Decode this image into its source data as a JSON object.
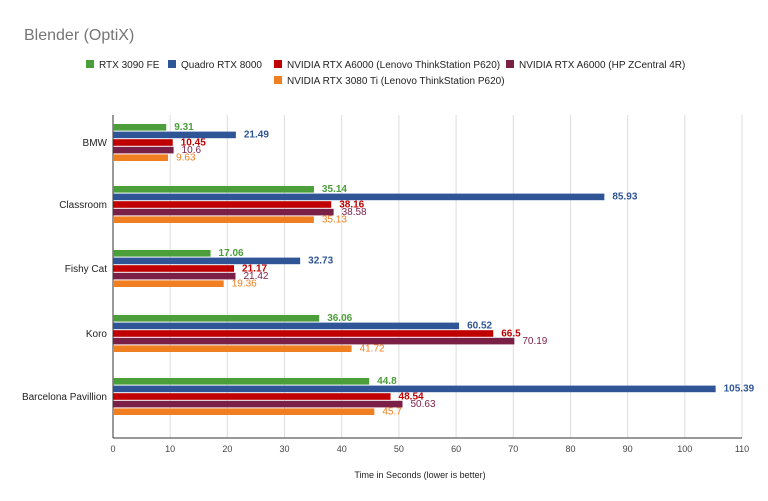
{
  "chart_data": {
    "type": "bar",
    "orientation": "horizontal",
    "title": "Blender (OptiX)",
    "xlabel": "Time in Seconds (lower is better)",
    "ylabel": "",
    "xlim": [
      0,
      110
    ],
    "x_ticks": [
      0,
      10,
      20,
      30,
      40,
      50,
      60,
      70,
      80,
      90,
      100,
      110
    ],
    "grid": true,
    "legend_position": "top",
    "categories": [
      "BMW",
      "Classroom",
      "Fishy Cat",
      "Koro",
      "Barcelona Pavillion"
    ],
    "series": [
      {
        "name": "RTX 3090 FE",
        "color": "#4b9e3a",
        "label_bold": true,
        "values": [
          9.31,
          35.14,
          17.06,
          36.06,
          44.8
        ]
      },
      {
        "name": "Quadro RTX 8000",
        "color": "#2f5597",
        "label_bold": true,
        "values": [
          21.49,
          85.93,
          32.73,
          60.52,
          105.39
        ]
      },
      {
        "name": "NVIDIA RTX A6000 (Lenovo ThinkStation P620)",
        "color": "#c00000",
        "label_bold": true,
        "values": [
          10.45,
          38.16,
          21.17,
          66.5,
          48.54
        ]
      },
      {
        "name": "NVIDIA RTX A6000 (HP ZCentral 4R)",
        "color": "#7a1f45",
        "label_bold": false,
        "values": [
          10.6,
          38.58,
          21.42,
          70.19,
          50.63
        ]
      },
      {
        "name": "NVIDIA RTX 3080 Ti (Lenovo ThinkStation P620)",
        "color": "#f07f22",
        "label_bold": false,
        "values": [
          9.63,
          35.13,
          19.36,
          41.72,
          45.7
        ]
      }
    ]
  }
}
